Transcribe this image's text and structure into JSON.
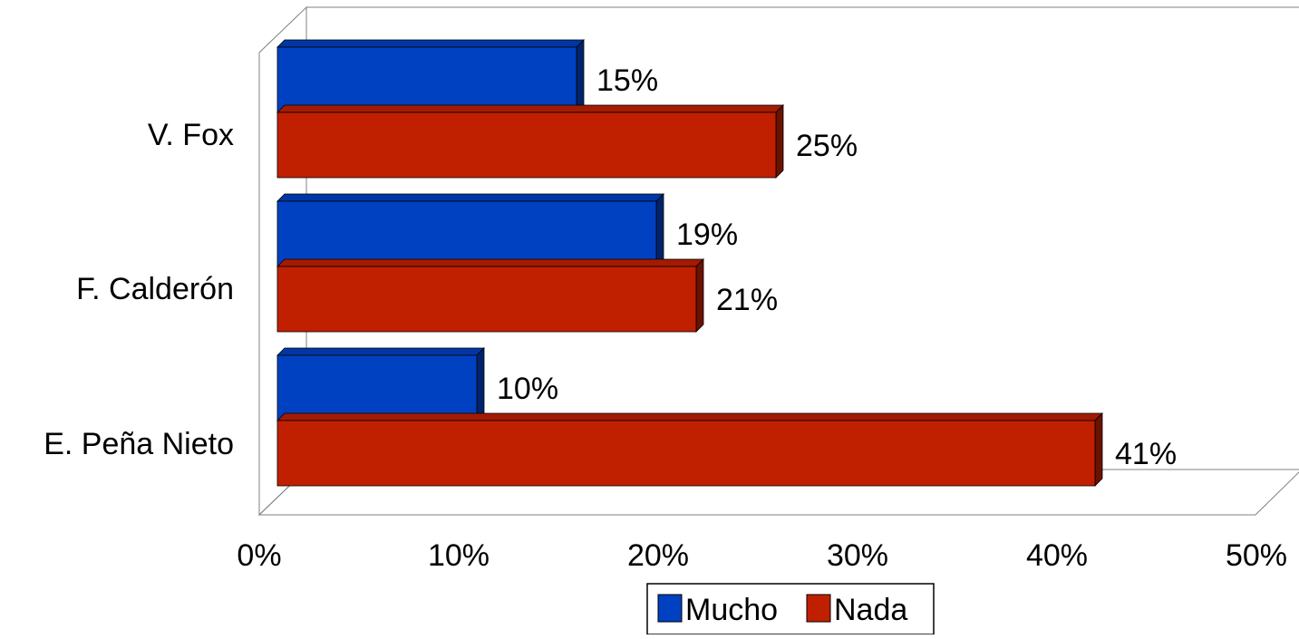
{
  "chart_data": {
    "type": "bar",
    "orientation": "horizontal",
    "style": "3d",
    "categories": [
      "V. Fox",
      "F. Calderón",
      "E. Peña Nieto"
    ],
    "series": [
      {
        "name": "Mucho",
        "color": "#0041C2",
        "values": [
          15,
          19,
          10
        ],
        "labels": [
          "15%",
          "19%",
          "10%"
        ]
      },
      {
        "name": "Nada",
        "color": "#C02000",
        "values": [
          25,
          21,
          41
        ],
        "labels": [
          "25%",
          "21%",
          "41%"
        ]
      }
    ],
    "x_ticks": [
      "0%",
      "10%",
      "20%",
      "30%",
      "40%",
      "50%"
    ],
    "xlim": [
      0,
      50
    ],
    "grid": false,
    "legend_position": "bottom"
  }
}
